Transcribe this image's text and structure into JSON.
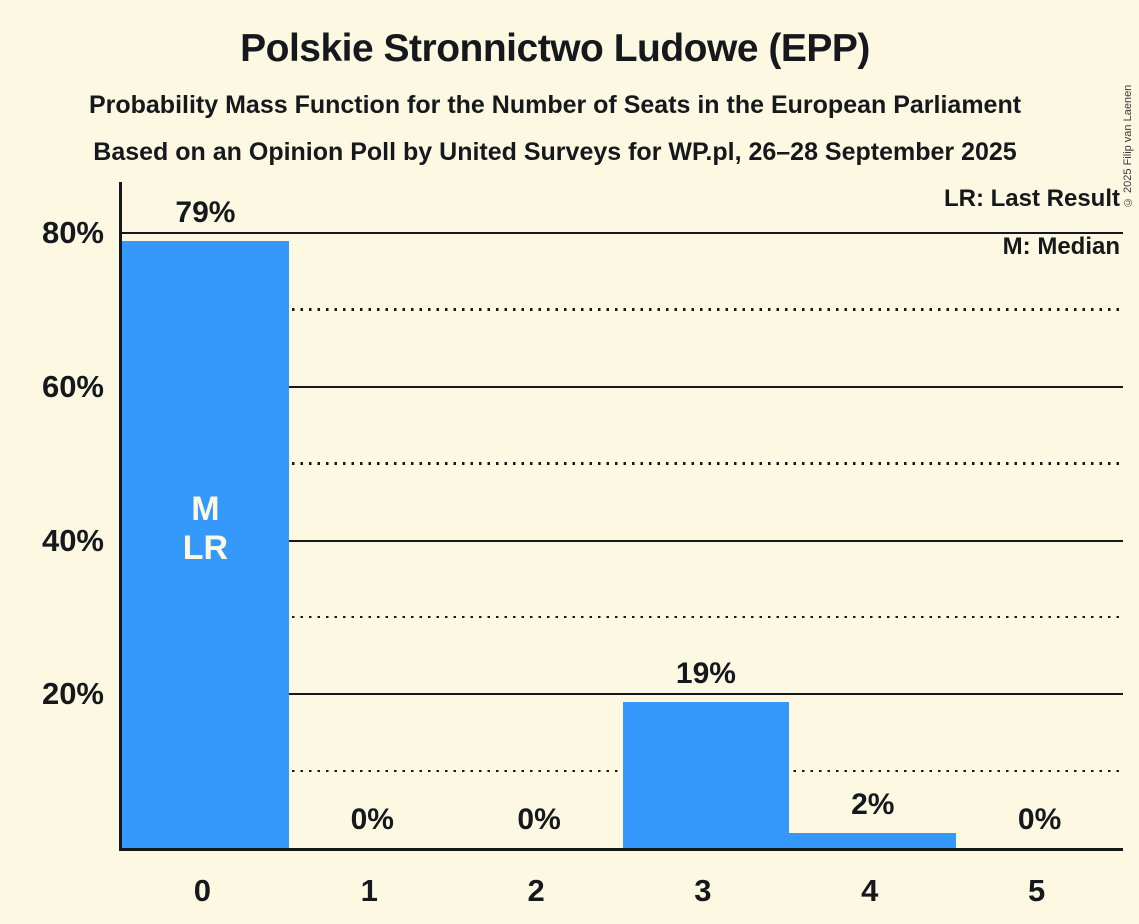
{
  "header": {
    "title": "Polskie Stronnictwo Ludowe (EPP)",
    "subtitle": "Probability Mass Function for the Number of Seats in the European Parliament",
    "source_line": "Based on an Opinion Poll by United Surveys for WP.pl, 26–28 September 2025"
  },
  "copyright": "© 2025 Filip van Laenen",
  "legend": {
    "last_result": "LR: Last Result",
    "median": "M: Median"
  },
  "colors": {
    "background": "#fdf8e2",
    "bar": "#3499fb",
    "text": "#15181c",
    "annotation_text": "#fdf8e2"
  },
  "chart_data": {
    "type": "bar",
    "title": "Polskie Stronnictwo Ludowe (EPP)",
    "categories": [
      "0",
      "1",
      "2",
      "3",
      "4",
      "5"
    ],
    "values": [
      79,
      0,
      0,
      19,
      2,
      0
    ],
    "value_labels": [
      "79%",
      "0%",
      "0%",
      "19%",
      "2%",
      "0%"
    ],
    "annotations": [
      {
        "category_index": 0,
        "lines": [
          "M",
          "LR"
        ]
      }
    ],
    "yticks": [
      {
        "value": 20,
        "label": "20%"
      },
      {
        "value": 40,
        "label": "40%"
      },
      {
        "value": 60,
        "label": "60%"
      },
      {
        "value": 80,
        "label": "80%"
      }
    ],
    "gridlines": {
      "solid": [
        20,
        40,
        60,
        80
      ],
      "dotted": [
        10,
        30,
        50,
        70
      ]
    },
    "ylim": [
      0,
      86.6
    ],
    "grid": true,
    "legend_position": "top-right",
    "bar_orientation": "vertical"
  }
}
